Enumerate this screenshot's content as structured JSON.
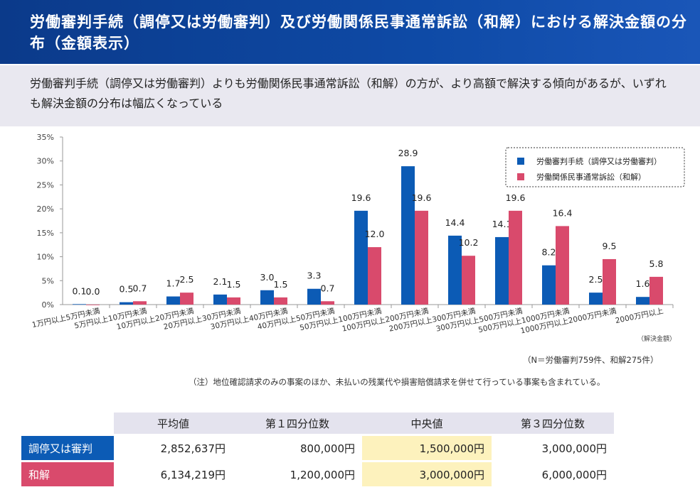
{
  "header": {
    "title": "労働審判手続（調停又は労働審判）及び労働関係民事通常訴訟（和解）における解決金額の分布（金額表示）"
  },
  "subtitle": "労働審判手続（調停又は労働審判）よりも労働関係民事通常訴訟（和解）の方が、より高額で解決する傾向があるが、いずれも解決金額の分布は幅広くなっている",
  "chart_data": {
    "type": "bar",
    "categories": [
      "1万円以上5万円未満",
      "5万円以上10万円未満",
      "10万円以上20万円未満",
      "20万円以上30万円未満",
      "30万円以上40万円未満",
      "40万円以上50万円未満",
      "50万円以上100万円未満",
      "100万円以上200万円未満",
      "200万円以上300万円未満",
      "300万円以上500万円未満",
      "500万円以上1000万円未満",
      "1000万円以上2000万円未満",
      "2000万円以上"
    ],
    "series": [
      {
        "name": "労働審判手続（調停又は労働審判）",
        "color": "#0c5bb5",
        "values": [
          0.1,
          0.5,
          1.7,
          2.1,
          3.0,
          3.3,
          19.6,
          28.9,
          14.4,
          14.1,
          8.2,
          2.5,
          1.6
        ]
      },
      {
        "name": "労働関係民事通常訴訟（和解）",
        "color": "#d94a6c",
        "values": [
          0.0,
          0.7,
          2.5,
          1.5,
          1.5,
          0.7,
          12.0,
          19.6,
          10.2,
          19.6,
          16.4,
          9.5,
          5.8
        ]
      }
    ],
    "yticks": [
      "0%",
      "5%",
      "10%",
      "15%",
      "20%",
      "25%",
      "30%",
      "35%"
    ],
    "ylim": [
      0,
      35
    ],
    "xlabel": "（解決金額）",
    "legend": "top-right"
  },
  "notes": {
    "n": "（N＝労働審判759件、和解275件）",
    "remark": "（注）地位確認請求のみの事案のほか、未払いの残業代や損害賠償請求を併せて行っている事案も含まれている。"
  },
  "table": {
    "headers": [
      "平均値",
      "第１四分位数",
      "中央値",
      "第３四分位数"
    ],
    "rows": [
      {
        "label": "調停又は審判",
        "color": "#0c5bb5",
        "values": [
          "2,852,637円",
          "800,000円",
          "1,500,000円",
          "3,000,000円"
        ]
      },
      {
        "label": "和解",
        "color": "#d94a6c",
        "values": [
          "6,134,219円",
          "1,200,000円",
          "3,000,000円",
          "6,000,000円"
        ]
      }
    ]
  }
}
